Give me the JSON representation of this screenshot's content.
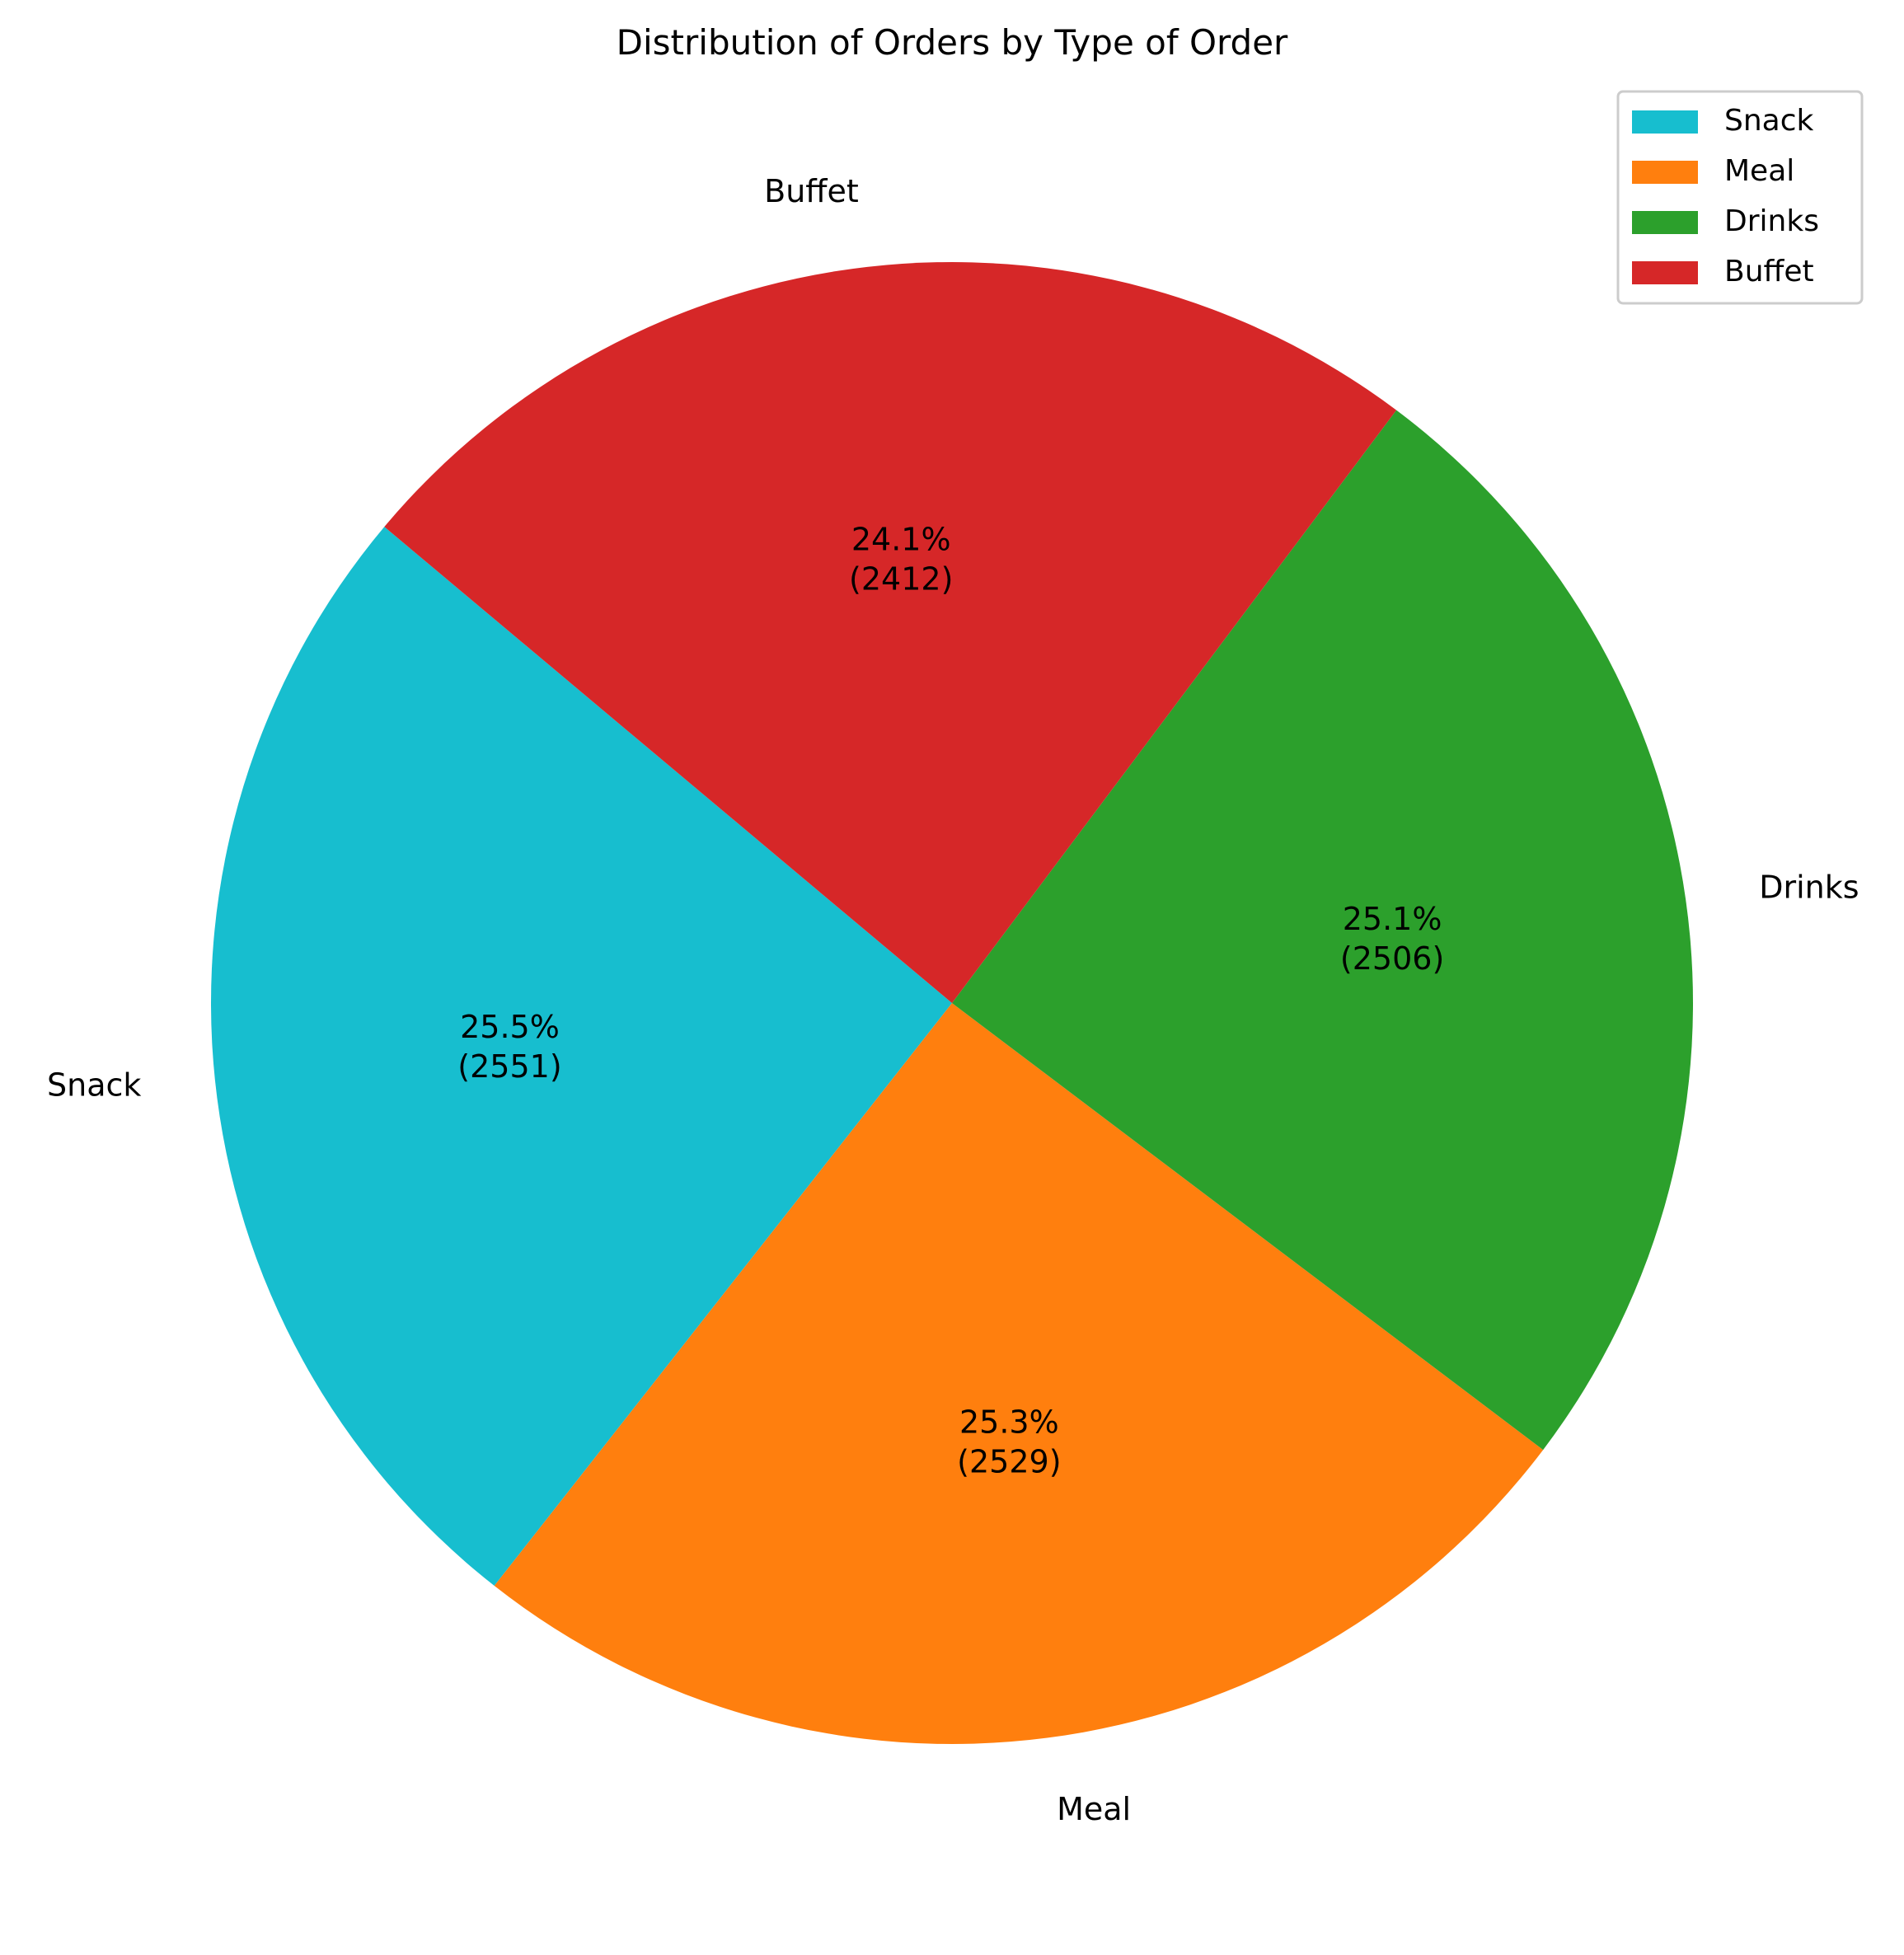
{
  "chart_data": {
    "type": "pie",
    "title": "Distribution of Orders by Type of Order",
    "categories": [
      "Snack",
      "Meal",
      "Drinks",
      "Buffet"
    ],
    "values": [
      2551,
      2529,
      2506,
      2412
    ],
    "percent_labels": [
      "25.5%",
      "25.3%",
      "25.1%",
      "24.1%"
    ],
    "count_labels": [
      "(2551)",
      "(2529)",
      "(2506)",
      "(2412)"
    ],
    "colors": [
      "#17becf",
      "#ff7f0e",
      "#2ca02c",
      "#d62728"
    ],
    "start_angle_deg": 140,
    "direction": "counterclockwise",
    "legend": {
      "placement": "top-right",
      "entries": [
        "Snack",
        "Meal",
        "Drinks",
        "Buffet"
      ]
    }
  }
}
